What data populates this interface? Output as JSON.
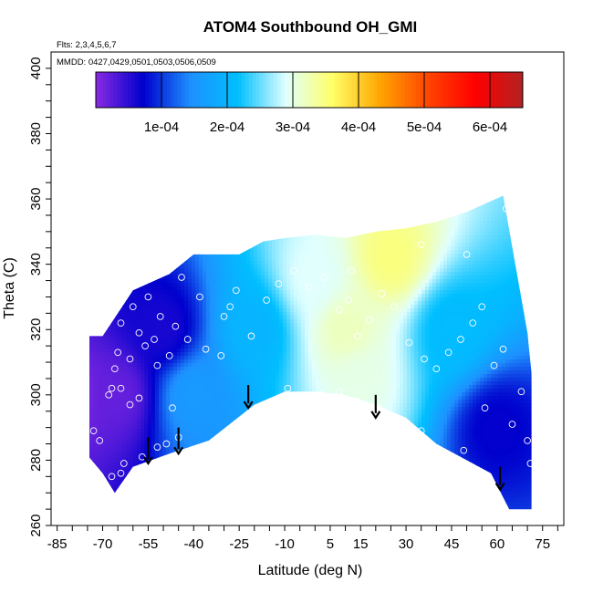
{
  "chart_data": {
    "type": "heatmap",
    "title": "ATOM4 Southbound OH_GMI",
    "annotations": [
      "Flts: 2,3,4,5,6,7",
      "MMDD: 0427,0429,0501,0503,0506,0509"
    ],
    "xlabel": "Latitude (deg N)",
    "ylabel": "Theta (C)",
    "xlim": [
      -87,
      82
    ],
    "ylim": [
      260,
      405
    ],
    "x_ticks": [
      -85,
      -70,
      -55,
      -40,
      -25,
      -10,
      5,
      15,
      30,
      45,
      60,
      75
    ],
    "x_tick_labels": [
      "-85",
      "-70",
      "-55",
      "-40",
      "-25",
      "-10",
      "5",
      "15",
      "30",
      "45",
      "60",
      "75"
    ],
    "y_ticks": [
      260,
      280,
      300,
      320,
      340,
      360,
      380,
      400
    ],
    "y_tick_labels": [
      "260",
      "280",
      "300",
      "320",
      "340",
      "360",
      "380",
      "400"
    ],
    "colorbar": {
      "min": 0,
      "max": 0.00065,
      "tick_values": [
        0.0001,
        0.0002,
        0.0003,
        0.0004,
        0.0005,
        0.0006
      ],
      "tick_labels": [
        "1e-04",
        "2e-04",
        "3e-04",
        "4e-04",
        "5e-04",
        "6e-04"
      ],
      "colors": [
        "#8a2be2",
        "#0000cd",
        "#1e90ff",
        "#00bfff",
        "#e0ffff",
        "#ffff66",
        "#ffa500",
        "#ff4500",
        "#ff0000",
        "#b22222"
      ]
    },
    "domain": {
      "upper_boundary": [
        [
          -87,
          318
        ],
        [
          -70,
          318
        ],
        [
          -60,
          332
        ],
        [
          -48,
          337
        ],
        [
          -40,
          343
        ],
        [
          -25,
          343
        ],
        [
          -17,
          347
        ],
        [
          -10,
          348
        ],
        [
          0,
          349
        ],
        [
          10,
          348
        ],
        [
          20,
          350
        ],
        [
          30,
          351
        ],
        [
          40,
          353
        ],
        [
          50,
          356
        ],
        [
          62,
          361
        ],
        [
          70,
          319
        ],
        [
          72,
          301
        ]
      ],
      "lower_boundary": [
        [
          -87,
          291
        ],
        [
          -80,
          287
        ],
        [
          -70,
          276
        ],
        [
          -66,
          270
        ],
        [
          -60,
          278
        ],
        [
          -48,
          282
        ],
        [
          -35,
          286
        ],
        [
          -20,
          297
        ],
        [
          -10,
          301
        ],
        [
          0,
          301
        ],
        [
          10,
          300
        ],
        [
          20,
          297
        ],
        [
          30,
          293
        ],
        [
          40,
          285
        ],
        [
          50,
          280
        ],
        [
          58,
          276
        ],
        [
          64,
          265
        ],
        [
          72,
          265
        ]
      ]
    },
    "field_samples": [
      {
        "lat": -80,
        "theta": 300,
        "value": 1e-05
      },
      {
        "lat": -65,
        "theta": 300,
        "value": 2e-05
      },
      {
        "lat": -50,
        "theta": 320,
        "value": 6e-05
      },
      {
        "lat": -40,
        "theta": 300,
        "value": 0.00016
      },
      {
        "lat": -20,
        "theta": 320,
        "value": 0.0002
      },
      {
        "lat": 0,
        "theta": 335,
        "value": 0.00029
      },
      {
        "lat": 10,
        "theta": 320,
        "value": 0.00032
      },
      {
        "lat": 15,
        "theta": 305,
        "value": 0.0003
      },
      {
        "lat": 25,
        "theta": 342,
        "value": 0.00035
      },
      {
        "lat": 45,
        "theta": 320,
        "value": 0.00021
      },
      {
        "lat": 60,
        "theta": 290,
        "value": 7e-05
      }
    ],
    "observations": [
      {
        "lat": -69,
        "theta": 269
      },
      {
        "lat": -67,
        "theta": 275
      },
      {
        "lat": -64,
        "theta": 276
      },
      {
        "lat": -80,
        "theta": 288
      },
      {
        "lat": -78,
        "theta": 285
      },
      {
        "lat": -73,
        "theta": 289
      },
      {
        "lat": -71,
        "theta": 286
      },
      {
        "lat": -63,
        "theta": 279
      },
      {
        "lat": -57,
        "theta": 281
      },
      {
        "lat": -52,
        "theta": 284
      },
      {
        "lat": -49,
        "theta": 285
      },
      {
        "lat": -45,
        "theta": 287
      },
      {
        "lat": -68,
        "theta": 300
      },
      {
        "lat": -67,
        "theta": 302
      },
      {
        "lat": -64,
        "theta": 302
      },
      {
        "lat": -61,
        "theta": 297
      },
      {
        "lat": -58,
        "theta": 299
      },
      {
        "lat": -66,
        "theta": 308
      },
      {
        "lat": -65,
        "theta": 313
      },
      {
        "lat": -61,
        "theta": 311
      },
      {
        "lat": -56,
        "theta": 315
      },
      {
        "lat": -52,
        "theta": 309
      },
      {
        "lat": -48,
        "theta": 312
      },
      {
        "lat": -47,
        "theta": 296
      },
      {
        "lat": -68,
        "theta": 325
      },
      {
        "lat": -66,
        "theta": 328
      },
      {
        "lat": -64,
        "theta": 322
      },
      {
        "lat": -60,
        "theta": 327
      },
      {
        "lat": -55,
        "theta": 330
      },
      {
        "lat": -51,
        "theta": 324
      },
      {
        "lat": -58,
        "theta": 319
      },
      {
        "lat": -53,
        "theta": 317
      },
      {
        "lat": -46,
        "theta": 321
      },
      {
        "lat": -42,
        "theta": 317
      },
      {
        "lat": -36,
        "theta": 314
      },
      {
        "lat": -31,
        "theta": 312
      },
      {
        "lat": -28,
        "theta": 327
      },
      {
        "lat": -26,
        "theta": 332
      },
      {
        "lat": -21,
        "theta": 318
      },
      {
        "lat": -16,
        "theta": 329
      },
      {
        "lat": -12,
        "theta": 334
      },
      {
        "lat": -7,
        "theta": 338
      },
      {
        "lat": -2,
        "theta": 333
      },
      {
        "lat": 3,
        "theta": 336
      },
      {
        "lat": 8,
        "theta": 326
      },
      {
        "lat": 11,
        "theta": 329
      },
      {
        "lat": 14,
        "theta": 318
      },
      {
        "lat": 18,
        "theta": 323
      },
      {
        "lat": 22,
        "theta": 331
      },
      {
        "lat": 26,
        "theta": 327
      },
      {
        "lat": 31,
        "theta": 316
      },
      {
        "lat": 36,
        "theta": 311
      },
      {
        "lat": 40,
        "theta": 308
      },
      {
        "lat": 44,
        "theta": 313
      },
      {
        "lat": 48,
        "theta": 317
      },
      {
        "lat": 52,
        "theta": 322
      },
      {
        "lat": 55,
        "theta": 327
      },
      {
        "lat": 59,
        "theta": 309
      },
      {
        "lat": 62,
        "theta": 314
      },
      {
        "lat": -9,
        "theta": 302
      },
      {
        "lat": 2,
        "theta": 300
      },
      {
        "lat": 8,
        "theta": 301
      },
      {
        "lat": 14,
        "theta": 298
      },
      {
        "lat": 21,
        "theta": 296
      },
      {
        "lat": 28,
        "theta": 292
      },
      {
        "lat": 35,
        "theta": 289
      },
      {
        "lat": 42,
        "theta": 282
      },
      {
        "lat": 49,
        "theta": 283
      },
      {
        "lat": 56,
        "theta": 296
      },
      {
        "lat": 65,
        "theta": 291
      },
      {
        "lat": 70,
        "theta": 286
      },
      {
        "lat": 71,
        "theta": 279
      },
      {
        "lat": 68,
        "theta": 301
      },
      {
        "lat": 63,
        "theta": 357
      },
      {
        "lat": 50,
        "theta": 343
      },
      {
        "lat": 35,
        "theta": 346
      },
      {
        "lat": 12,
        "theta": 338
      },
      {
        "lat": -18,
        "theta": 349
      },
      {
        "lat": -30,
        "theta": 324
      },
      {
        "lat": -38,
        "theta": 330
      },
      {
        "lat": -44,
        "theta": 336
      }
    ],
    "arrows": [
      {
        "lat": -55,
        "theta_top": 287,
        "theta_tip": 279
      },
      {
        "lat": -45,
        "theta_top": 290,
        "theta_tip": 282
      },
      {
        "lat": -22,
        "theta_top": 303,
        "theta_tip": 296
      },
      {
        "lat": 20,
        "theta_top": 300,
        "theta_tip": 293
      },
      {
        "lat": 61,
        "theta_top": 278,
        "theta_tip": 271
      }
    ]
  }
}
